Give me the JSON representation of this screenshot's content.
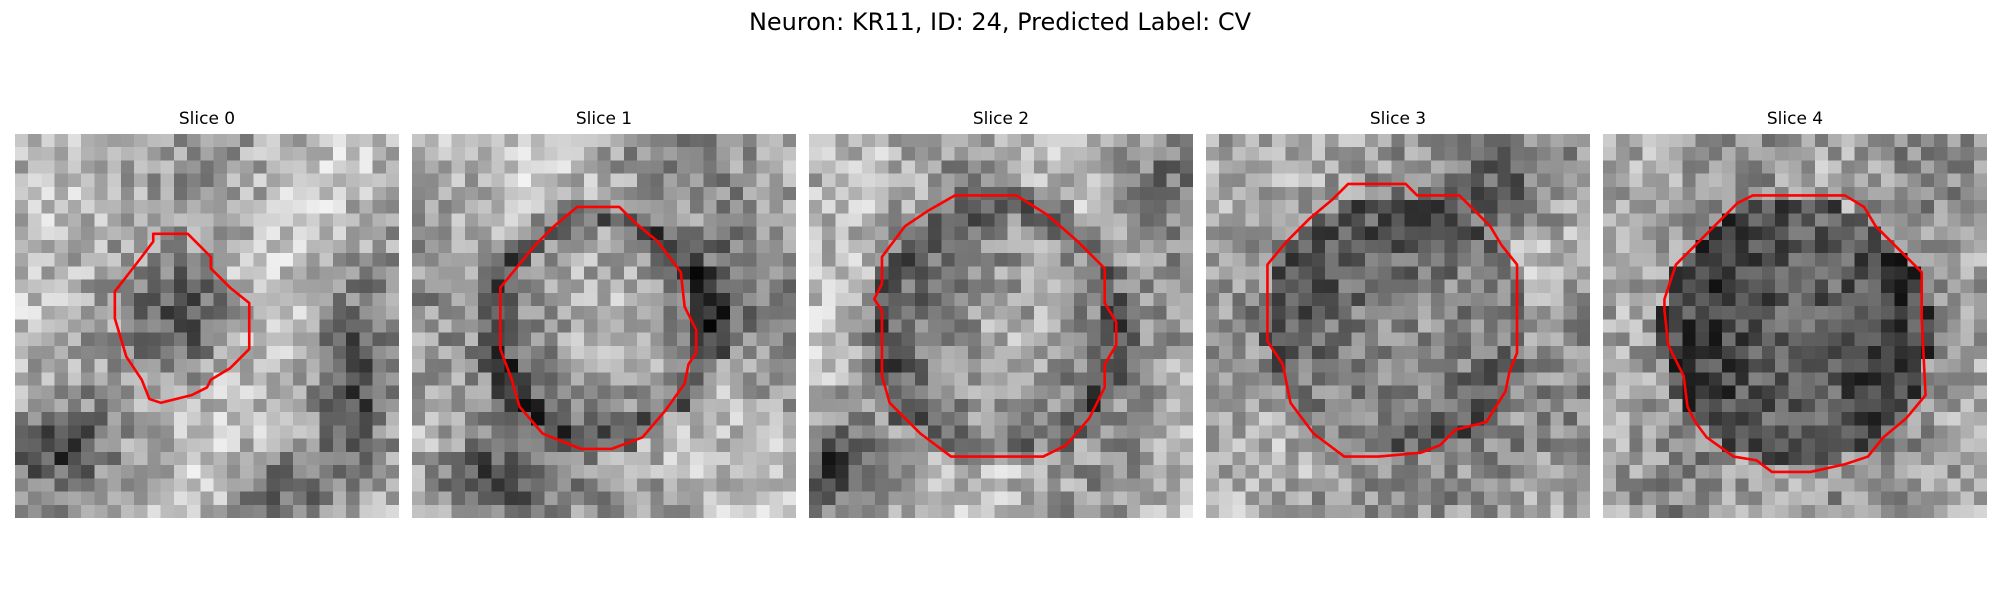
{
  "figure": {
    "title": "Neuron: KR11, ID: 24, Predicted Label: CV"
  },
  "panels": [
    {
      "title": "Slice 0",
      "image": "grayscale-microscopy-slice",
      "contour_color": "#ff0000",
      "contour": [
        [
          0.36,
          0.26
        ],
        [
          0.45,
          0.26
        ],
        [
          0.51,
          0.32
        ],
        [
          0.51,
          0.35
        ],
        [
          0.56,
          0.4
        ],
        [
          0.61,
          0.44
        ],
        [
          0.61,
          0.56
        ],
        [
          0.57,
          0.6
        ],
        [
          0.56,
          0.61
        ],
        [
          0.51,
          0.64
        ],
        [
          0.5,
          0.66
        ],
        [
          0.48,
          0.67
        ],
        [
          0.46,
          0.68
        ],
        [
          0.38,
          0.7
        ],
        [
          0.35,
          0.69
        ],
        [
          0.33,
          0.64
        ],
        [
          0.29,
          0.58
        ],
        [
          0.26,
          0.48
        ],
        [
          0.26,
          0.41
        ],
        [
          0.33,
          0.32
        ],
        [
          0.36,
          0.28
        ]
      ]
    },
    {
      "title": "Slice 1",
      "image": "grayscale-microscopy-slice",
      "contour_color": "#ff0000",
      "contour": [
        [
          0.43,
          0.19
        ],
        [
          0.54,
          0.19
        ],
        [
          0.58,
          0.23
        ],
        [
          0.64,
          0.28
        ],
        [
          0.7,
          0.36
        ],
        [
          0.71,
          0.45
        ],
        [
          0.74,
          0.51
        ],
        [
          0.74,
          0.57
        ],
        [
          0.72,
          0.6
        ],
        [
          0.71,
          0.65
        ],
        [
          0.66,
          0.72
        ],
        [
          0.6,
          0.79
        ],
        [
          0.52,
          0.82
        ],
        [
          0.44,
          0.82
        ],
        [
          0.34,
          0.78
        ],
        [
          0.28,
          0.71
        ],
        [
          0.26,
          0.64
        ],
        [
          0.23,
          0.56
        ],
        [
          0.23,
          0.47
        ],
        [
          0.23,
          0.4
        ],
        [
          0.32,
          0.29
        ],
        [
          0.37,
          0.24
        ]
      ]
    },
    {
      "title": "Slice 2",
      "image": "grayscale-microscopy-slice",
      "contour_color": "#ff0000",
      "contour": [
        [
          0.38,
          0.16
        ],
        [
          0.54,
          0.16
        ],
        [
          0.62,
          0.21
        ],
        [
          0.7,
          0.28
        ],
        [
          0.77,
          0.35
        ],
        [
          0.77,
          0.44
        ],
        [
          0.8,
          0.49
        ],
        [
          0.8,
          0.55
        ],
        [
          0.77,
          0.6
        ],
        [
          0.77,
          0.66
        ],
        [
          0.73,
          0.74
        ],
        [
          0.67,
          0.81
        ],
        [
          0.61,
          0.84
        ],
        [
          0.49,
          0.84
        ],
        [
          0.37,
          0.84
        ],
        [
          0.29,
          0.78
        ],
        [
          0.21,
          0.7
        ],
        [
          0.19,
          0.63
        ],
        [
          0.19,
          0.52
        ],
        [
          0.19,
          0.46
        ],
        [
          0.17,
          0.43
        ],
        [
          0.19,
          0.39
        ],
        [
          0.19,
          0.32
        ],
        [
          0.25,
          0.24
        ],
        [
          0.31,
          0.2
        ]
      ]
    },
    {
      "title": "Slice 3",
      "image": "grayscale-microscopy-slice",
      "contour_color": "#ff0000",
      "contour": [
        [
          0.37,
          0.13
        ],
        [
          0.52,
          0.13
        ],
        [
          0.55,
          0.16
        ],
        [
          0.66,
          0.16
        ],
        [
          0.74,
          0.24
        ],
        [
          0.77,
          0.29
        ],
        [
          0.81,
          0.34
        ],
        [
          0.81,
          0.45
        ],
        [
          0.81,
          0.57
        ],
        [
          0.79,
          0.62
        ],
        [
          0.78,
          0.67
        ],
        [
          0.73,
          0.75
        ],
        [
          0.65,
          0.77
        ],
        [
          0.61,
          0.81
        ],
        [
          0.56,
          0.83
        ],
        [
          0.45,
          0.84
        ],
        [
          0.36,
          0.84
        ],
        [
          0.28,
          0.78
        ],
        [
          0.22,
          0.7
        ],
        [
          0.2,
          0.6
        ],
        [
          0.16,
          0.54
        ],
        [
          0.16,
          0.44
        ],
        [
          0.16,
          0.34
        ],
        [
          0.21,
          0.28
        ],
        [
          0.27,
          0.22
        ],
        [
          0.33,
          0.17
        ]
      ]
    },
    {
      "title": "Slice 4",
      "image": "grayscale-microscopy-slice",
      "contour_color": "#ff0000",
      "contour": [
        [
          0.39,
          0.16
        ],
        [
          0.63,
          0.16
        ],
        [
          0.68,
          0.19
        ],
        [
          0.71,
          0.24
        ],
        [
          0.77,
          0.3
        ],
        [
          0.83,
          0.36
        ],
        [
          0.83,
          0.48
        ],
        [
          0.84,
          0.68
        ],
        [
          0.79,
          0.74
        ],
        [
          0.73,
          0.79
        ],
        [
          0.69,
          0.84
        ],
        [
          0.63,
          0.86
        ],
        [
          0.54,
          0.88
        ],
        [
          0.44,
          0.88
        ],
        [
          0.4,
          0.85
        ],
        [
          0.34,
          0.84
        ],
        [
          0.27,
          0.79
        ],
        [
          0.24,
          0.75
        ],
        [
          0.22,
          0.71
        ],
        [
          0.21,
          0.63
        ],
        [
          0.17,
          0.55
        ],
        [
          0.16,
          0.46
        ],
        [
          0.16,
          0.43
        ],
        [
          0.19,
          0.34
        ],
        [
          0.25,
          0.28
        ],
        [
          0.31,
          0.22
        ],
        [
          0.35,
          0.18
        ]
      ]
    }
  ]
}
